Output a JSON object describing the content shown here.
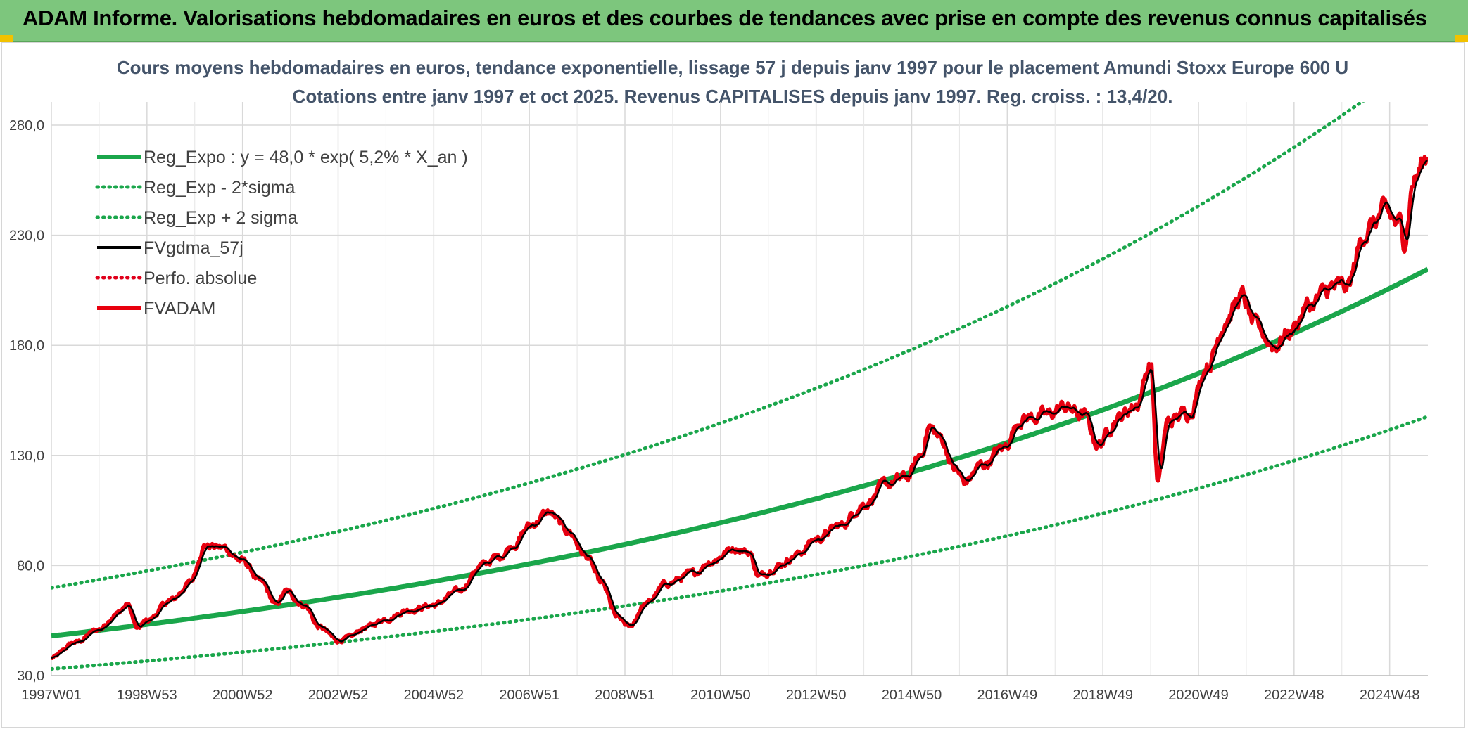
{
  "banner": {
    "title": "ADAM Informe. Valorisations hebdomadaires en euros et des courbes de tendances avec prise en compte des revenus connus capitalisés",
    "color": "#7dc67d"
  },
  "chart_data": {
    "type": "line",
    "title_line1": "Cours moyens hebdomadaires en euros, tendance exponentielle, lissage 57 j depuis janv 1997 pour le placement Amundi Stoxx Europe 600 U",
    "title_line2": "Cotations entre janv 1997 et oct 2025. Revenus CAPITALISES depuis janv 1997. Reg. croiss. : 13,4/20.",
    "x_tick_labels": [
      "1997W01",
      "1998W53",
      "2000W52",
      "2002W52",
      "2004W52",
      "2006W51",
      "2008W51",
      "2010W50",
      "2012W50",
      "2014W50",
      "2016W49",
      "2018W49",
      "2020W49",
      "2022W48",
      "2024W48"
    ],
    "y_tick_labels": [
      "30,0",
      "80,0",
      "130,0",
      "180,0",
      "230,0",
      "280,0"
    ],
    "xlim": [
      1997.0,
      2025.8
    ],
    "ylim": [
      30,
      300
    ],
    "grid": true,
    "legend_position": "top-left",
    "regression": {
      "a": 48.0,
      "rate": 0.052,
      "sigma_band_low_factor": 0.688,
      "sigma_band_high_factor": 1.455
    },
    "series": [
      {
        "name": "Reg_Expo : y = 48,0 * exp( 5,2% *  X_an )",
        "color": "#1aa64b",
        "style": "solid-thick"
      },
      {
        "name": "Reg_Exp - 2*sigma",
        "color": "#1aa64b",
        "style": "dotted"
      },
      {
        "name": "Reg_Exp + 2 sigma",
        "color": "#1aa64b",
        "style": "dotted"
      },
      {
        "name": "FVgdma_57j",
        "color": "#000000",
        "style": "solid"
      },
      {
        "name": "Perfo. absolue",
        "color": "#e0001b",
        "style": "dotted"
      },
      {
        "name": "FVADAM",
        "color": "#e8000e",
        "style": "solid-thick"
      }
    ],
    "fvadam_anchor_points": [
      [
        1997.0,
        38
      ],
      [
        1997.5,
        45
      ],
      [
        1998.0,
        51
      ],
      [
        1998.35,
        58
      ],
      [
        1998.6,
        62
      ],
      [
        1998.8,
        51
      ],
      [
        1999.0,
        55
      ],
      [
        1999.5,
        64
      ],
      [
        1999.9,
        72
      ],
      [
        2000.2,
        89
      ],
      [
        2000.6,
        88
      ],
      [
        2001.0,
        82
      ],
      [
        2001.4,
        72
      ],
      [
        2001.7,
        62
      ],
      [
        2001.9,
        68
      ],
      [
        2002.3,
        62
      ],
      [
        2002.6,
        52
      ],
      [
        2003.0,
        46
      ],
      [
        2003.2,
        47
      ],
      [
        2003.6,
        52
      ],
      [
        2004.0,
        56
      ],
      [
        2004.5,
        60
      ],
      [
        2005.0,
        62
      ],
      [
        2005.5,
        68
      ],
      [
        2006.0,
        80
      ],
      [
        2006.35,
        84
      ],
      [
        2006.7,
        90
      ],
      [
        2007.0,
        98
      ],
      [
        2007.4,
        104
      ],
      [
        2007.8,
        96
      ],
      [
        2008.2,
        84
      ],
      [
        2008.5,
        72
      ],
      [
        2008.85,
        56
      ],
      [
        2009.1,
        52
      ],
      [
        2009.4,
        62
      ],
      [
        2009.9,
        72
      ],
      [
        2010.4,
        76
      ],
      [
        2010.8,
        82
      ],
      [
        2011.3,
        88
      ],
      [
        2011.6,
        86
      ],
      [
        2011.8,
        75
      ],
      [
        2012.2,
        80
      ],
      [
        2012.6,
        85
      ],
      [
        2013.0,
        92
      ],
      [
        2013.5,
        98
      ],
      [
        2014.0,
        108
      ],
      [
        2014.5,
        117
      ],
      [
        2014.9,
        120
      ],
      [
        2015.2,
        130
      ],
      [
        2015.35,
        143
      ],
      [
        2015.6,
        138
      ],
      [
        2015.9,
        124
      ],
      [
        2016.1,
        118
      ],
      [
        2016.5,
        126
      ],
      [
        2016.9,
        133
      ],
      [
        2017.3,
        147
      ],
      [
        2017.8,
        148
      ],
      [
        2018.2,
        152
      ],
      [
        2018.6,
        148
      ],
      [
        2018.9,
        135
      ],
      [
        2019.3,
        147
      ],
      [
        2019.7,
        153
      ],
      [
        2020.0,
        172
      ],
      [
        2020.15,
        118
      ],
      [
        2020.35,
        145
      ],
      [
        2020.8,
        150
      ],
      [
        2021.2,
        172
      ],
      [
        2021.6,
        193
      ],
      [
        2021.9,
        202
      ],
      [
        2022.2,
        188
      ],
      [
        2022.6,
        180
      ],
      [
        2022.9,
        186
      ],
      [
        2023.3,
        198
      ],
      [
        2023.8,
        206
      ],
      [
        2024.1,
        206
      ],
      [
        2024.5,
        232
      ],
      [
        2024.9,
        240
      ],
      [
        2025.2,
        235
      ],
      [
        2025.3,
        228
      ],
      [
        2025.5,
        255
      ],
      [
        2025.8,
        266
      ]
    ]
  }
}
